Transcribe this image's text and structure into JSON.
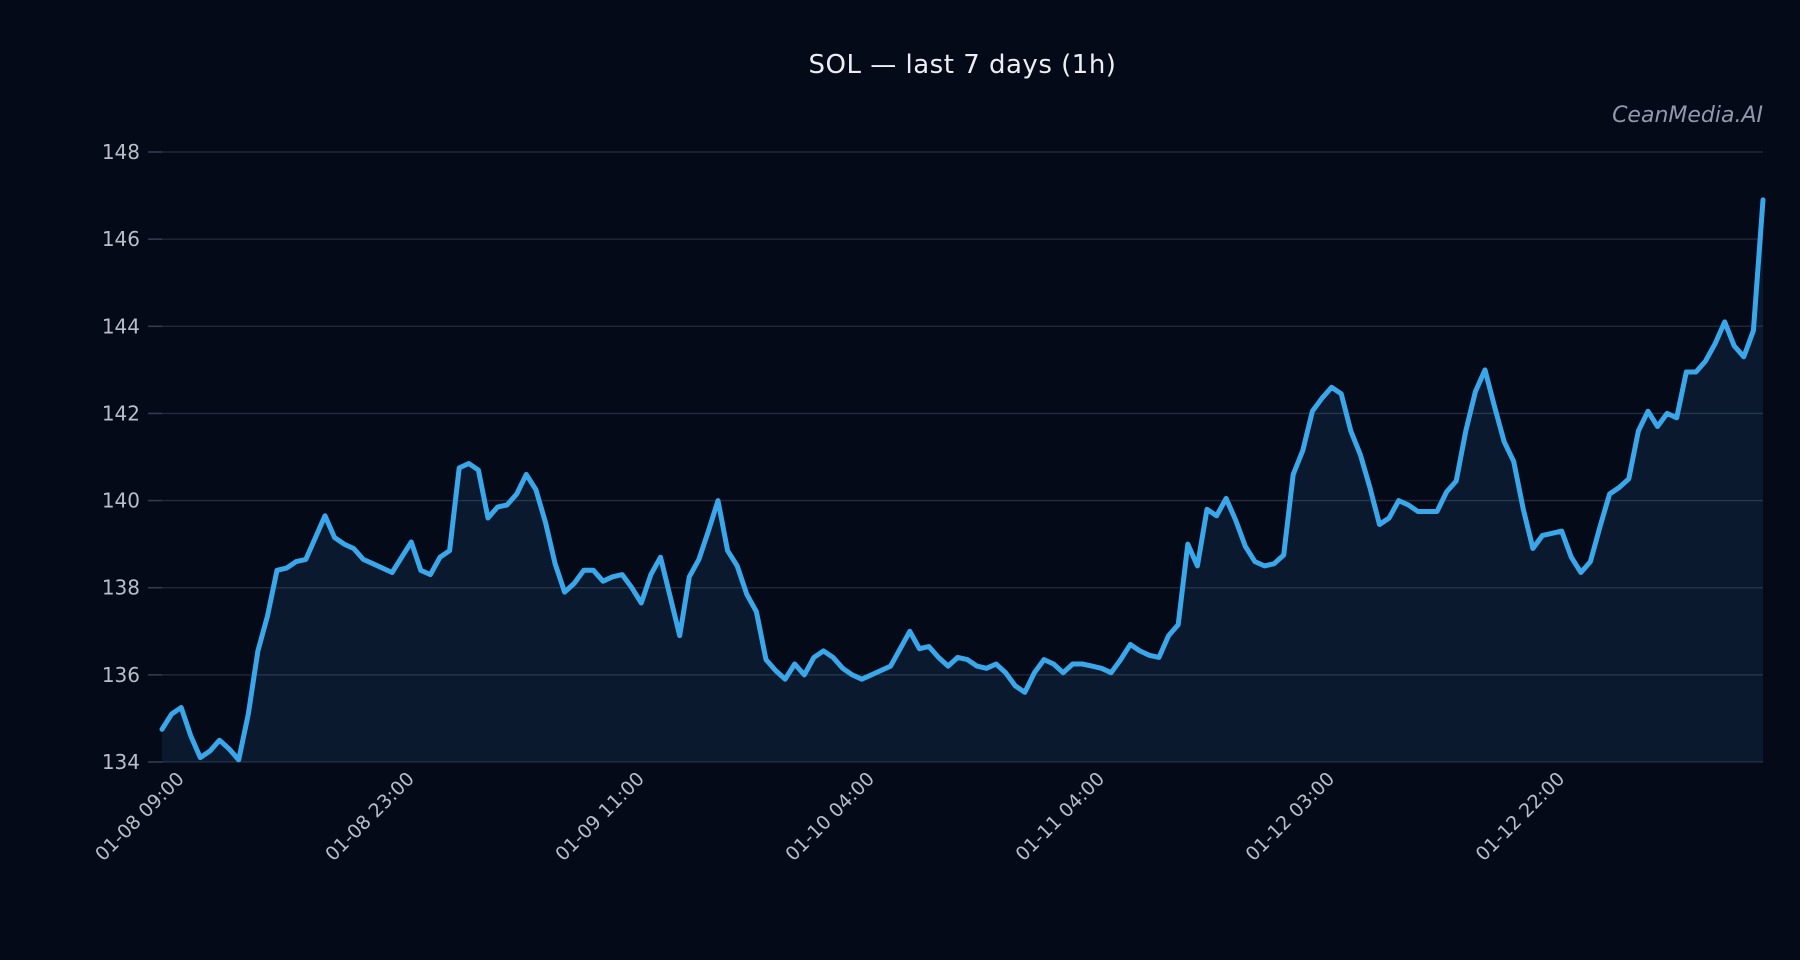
{
  "header": {
    "title": "SOL — last 7 days (1h)",
    "watermark": "CeanMedia.AI"
  },
  "chart_data": {
    "type": "line",
    "title": "SOL — last 7 days (1h)",
    "xlabel": "",
    "ylabel": "",
    "ylim": [
      134,
      148
    ],
    "yticks": [
      134,
      136,
      138,
      140,
      142,
      144,
      146,
      148
    ],
    "xtick_indices": [
      2,
      26,
      50,
      74,
      98,
      122,
      146
    ],
    "xtick_labels": [
      "01-08 09:00",
      "01-08 23:00",
      "01-09 11:00",
      "01-10 04:00",
      "01-11 04:00",
      "01-12 03:00",
      "01-12 22:00"
    ],
    "grid": "horizontal",
    "legend": "none",
    "area_fill": true,
    "series": [
      {
        "name": "SOL",
        "values": [
          134.75,
          135.1,
          135.25,
          134.6,
          134.1,
          134.25,
          134.5,
          134.3,
          134.05,
          135.1,
          136.55,
          137.35,
          138.4,
          138.45,
          138.6,
          138.65,
          139.15,
          139.65,
          139.15,
          139.0,
          138.9,
          138.65,
          138.55,
          138.45,
          138.35,
          138.7,
          139.05,
          138.4,
          138.3,
          138.7,
          138.85,
          140.75,
          140.85,
          140.7,
          139.6,
          139.85,
          139.9,
          140.15,
          140.6,
          140.25,
          139.5,
          138.55,
          137.9,
          138.1,
          138.4,
          138.4,
          138.15,
          138.25,
          138.3,
          138.0,
          137.65,
          138.3,
          138.7,
          137.8,
          136.9,
          138.25,
          138.65,
          139.3,
          140.0,
          138.85,
          138.5,
          137.85,
          137.45,
          136.35,
          136.1,
          135.9,
          136.25,
          136.0,
          136.4,
          136.55,
          136.4,
          136.15,
          136.0,
          135.9,
          136.0,
          136.1,
          136.2,
          136.6,
          137.0,
          136.6,
          136.65,
          136.4,
          136.2,
          136.4,
          136.35,
          136.2,
          136.15,
          136.25,
          136.05,
          135.75,
          135.6,
          136.05,
          136.35,
          136.25,
          136.05,
          136.25,
          136.25,
          136.2,
          136.15,
          136.05,
          136.35,
          136.7,
          136.55,
          136.45,
          136.4,
          136.9,
          137.15,
          139.0,
          138.5,
          139.8,
          139.65,
          140.05,
          139.55,
          138.95,
          138.6,
          138.5,
          138.55,
          138.75,
          140.6,
          141.15,
          142.05,
          142.35,
          142.6,
          142.45,
          141.6,
          141.05,
          140.3,
          139.45,
          139.6,
          140.0,
          139.9,
          139.75,
          139.75,
          139.75,
          140.2,
          140.45,
          141.6,
          142.5,
          143.0,
          142.15,
          141.35,
          140.9,
          139.8,
          138.9,
          139.2,
          139.25,
          139.3,
          138.7,
          138.35,
          138.6,
          139.4,
          140.15,
          140.3,
          140.5,
          141.6,
          142.05,
          141.7,
          142.0,
          141.9,
          142.95,
          142.95,
          143.2,
          143.6,
          144.1,
          143.55,
          143.3,
          143.9,
          146.9
        ]
      }
    ]
  },
  "colors": {
    "background": "#050a18",
    "line": "#3aa7ea",
    "fill": "rgba(58,167,234,0.10)",
    "grid": "#252c3d",
    "tick_stub": "#333b4d",
    "tick_label": "#b9bdc9",
    "title": "#eceef4",
    "watermark": "#9298aa"
  }
}
